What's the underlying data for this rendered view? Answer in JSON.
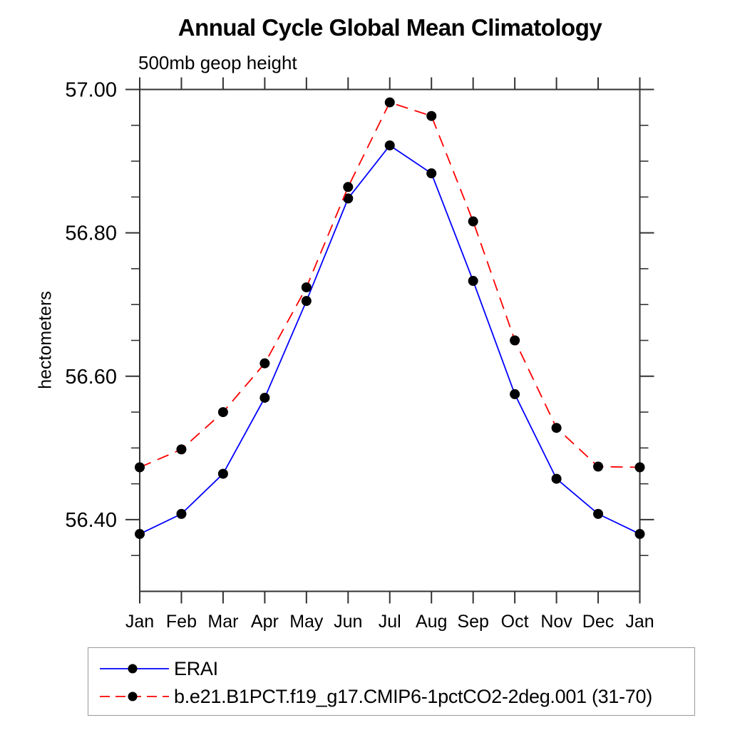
{
  "chart_data": {
    "type": "line",
    "title": "Annual Cycle Global Mean Climatology",
    "subtitle": "500mb geop height",
    "ylabel": "hectometers",
    "xlabel": "",
    "categories": [
      "Jan",
      "Feb",
      "Mar",
      "Apr",
      "May",
      "Jun",
      "Jul",
      "Aug",
      "Sep",
      "Oct",
      "Nov",
      "Dec",
      "Jan"
    ],
    "ylim": [
      56.3,
      57.0
    ],
    "y_major_ticks": {
      "values": [
        56.4,
        56.6,
        56.8,
        57.0
      ],
      "labels": [
        "56.40",
        "56.60",
        "56.80",
        "57.00"
      ]
    },
    "y_minor_step": 0.05,
    "grid": false,
    "axis_color": "#333333",
    "legend_position": "bottom-left",
    "series": [
      {
        "key": "erai",
        "name": "ERAI",
        "color": "#0000ff",
        "line_style": "solid",
        "marker": "filled-circle",
        "marker_color": "#000000",
        "values": [
          56.38,
          56.408,
          56.464,
          56.57,
          56.705,
          56.848,
          56.922,
          56.883,
          56.733,
          56.575,
          56.457,
          56.408,
          56.38
        ]
      },
      {
        "key": "cmip6-1pctco2",
        "name": "b.e21.B1PCT.f19_g17.CMIP6-1pctCO2-2deg.001 (31-70)",
        "color": "#ff0000",
        "line_style": "dashed",
        "marker": "filled-circle",
        "marker_color": "#000000",
        "values": [
          56.473,
          56.498,
          56.55,
          56.618,
          56.724,
          56.864,
          56.982,
          56.963,
          56.816,
          56.65,
          56.528,
          56.474,
          56.473
        ]
      }
    ]
  }
}
